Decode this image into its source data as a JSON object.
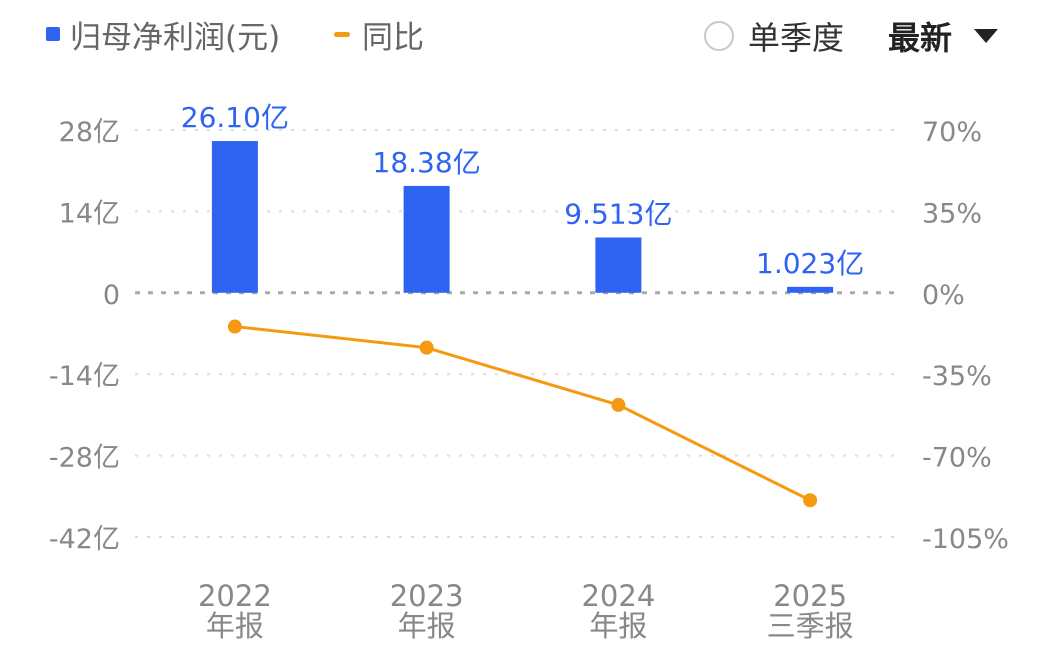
{
  "legend": {
    "bar_label": "归母净利润(元)",
    "line_label": "同比"
  },
  "controls": {
    "quarter_toggle_label": "单季度",
    "quarter_toggle_checked": false,
    "period_select_value": "最新"
  },
  "colors": {
    "bar": "#2f63f1",
    "line": "#f59a10",
    "axis_text": "#888888",
    "grid": "#dddddd",
    "zero_line": "#aaaaaa"
  },
  "chart_data": {
    "type": "bar",
    "categories": [
      [
        "2022",
        "年报"
      ],
      [
        "2023",
        "年报"
      ],
      [
        "2024",
        "年报"
      ],
      [
        "2025",
        "三季报"
      ]
    ],
    "series": [
      {
        "name": "归母净利润(元)",
        "type": "bar",
        "axis": "left",
        "values": [
          26.1,
          18.38,
          9.513,
          1.023
        ],
        "data_labels": [
          "26.10亿",
          "18.38亿",
          "9.513亿",
          "1.023亿"
        ]
      },
      {
        "name": "同比",
        "type": "line",
        "axis": "right",
        "values": [
          -14.5,
          -23.6,
          -48.2,
          -89.2
        ]
      }
    ],
    "y_left": {
      "ylim": [
        -42,
        28
      ],
      "ticks": [
        28,
        14,
        0,
        -14,
        -28,
        -42
      ],
      "tick_labels": [
        "28亿",
        "14亿",
        "0",
        "-14亿",
        "-28亿",
        "-42亿"
      ]
    },
    "y_right": {
      "ylim": [
        -105,
        70
      ],
      "ticks": [
        70,
        35,
        0,
        -35,
        -70,
        -105
      ],
      "tick_labels": [
        "70%",
        "35%",
        "0%",
        "-35%",
        "-70%",
        "-105%"
      ]
    },
    "grid": true,
    "legend_position": "top-left"
  }
}
